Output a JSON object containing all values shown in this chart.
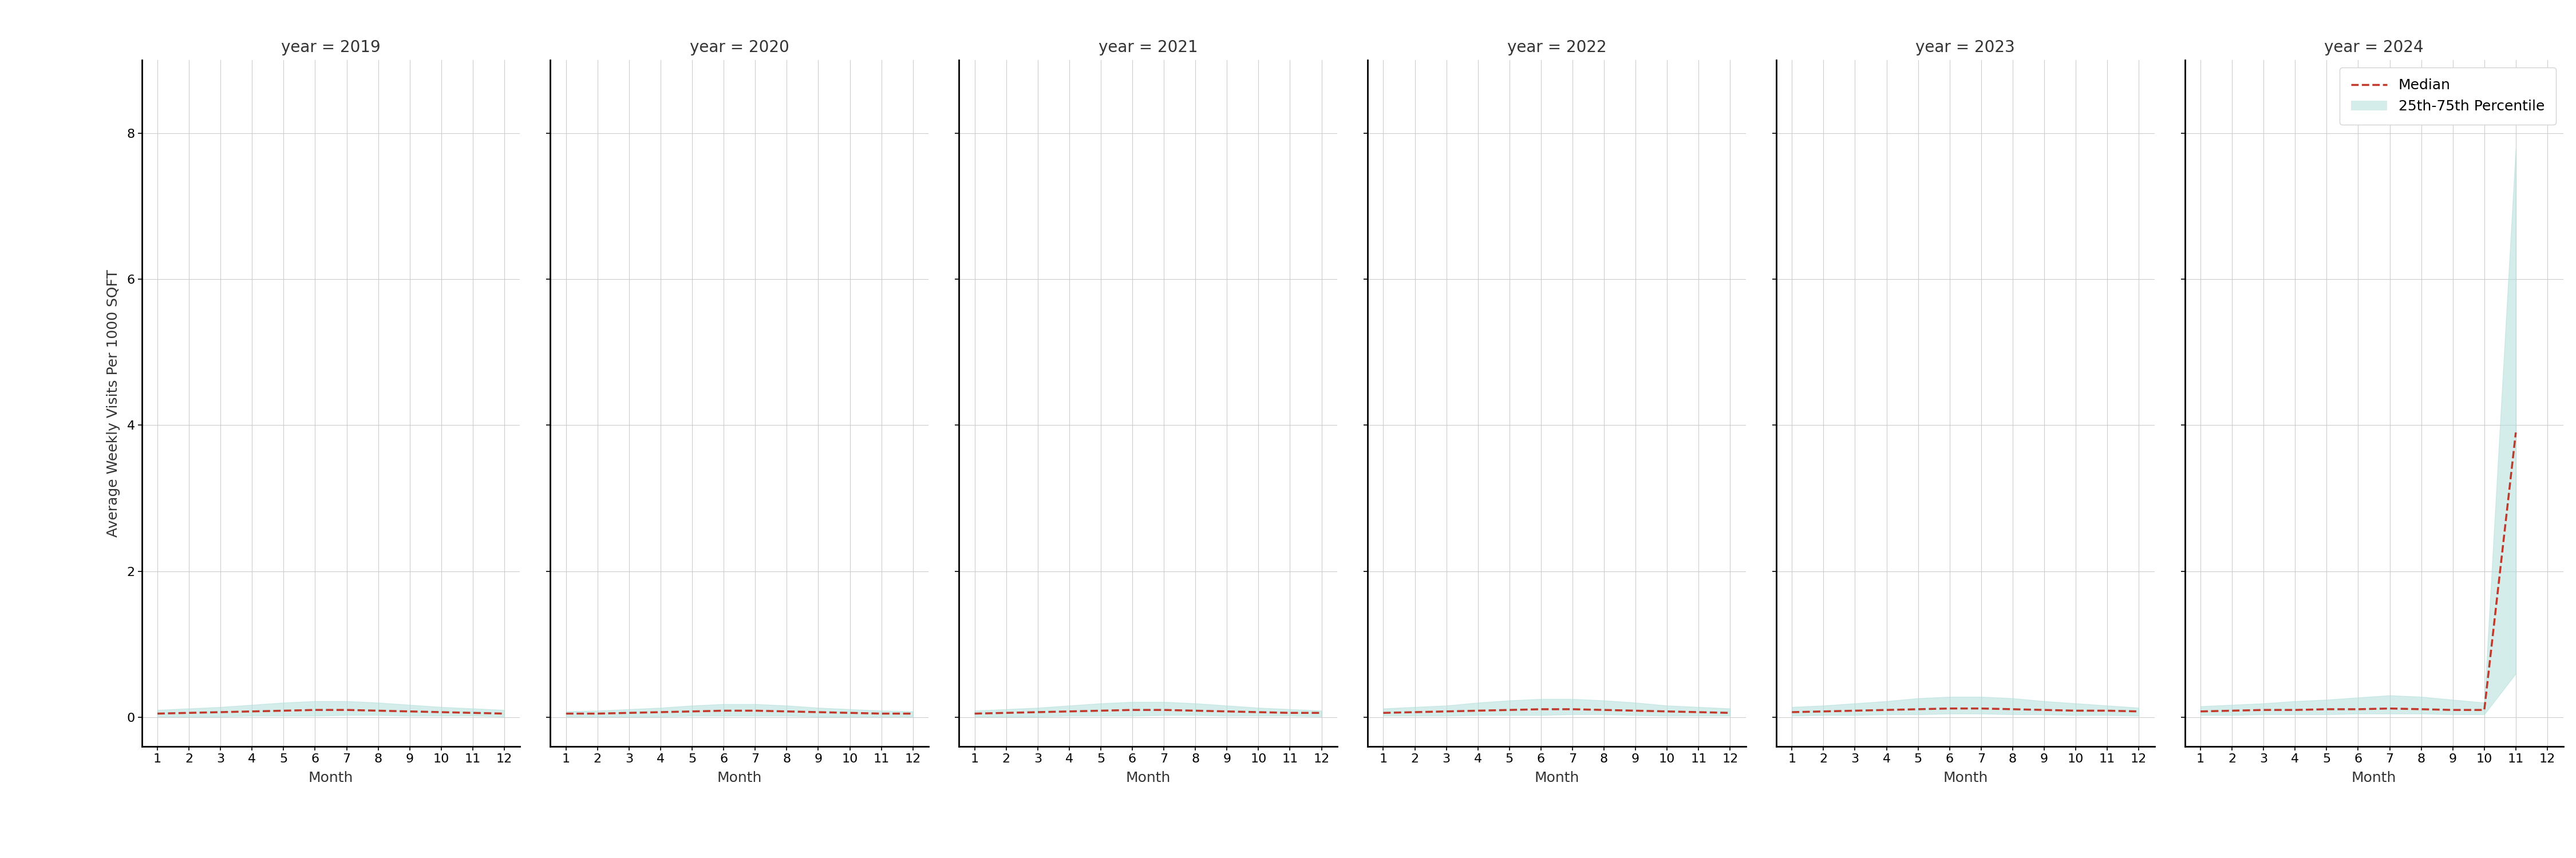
{
  "years": [
    2019,
    2020,
    2021,
    2022,
    2023,
    2024
  ],
  "months": [
    1,
    2,
    3,
    4,
    5,
    6,
    7,
    8,
    9,
    10,
    11,
    12
  ],
  "ylabel": "Average Weekly Visits Per 1000 SQFT",
  "xlabel": "Month",
  "ylim": [
    -0.4,
    9.0
  ],
  "yticks": [
    0,
    2,
    4,
    6,
    8
  ],
  "xticks": [
    1,
    2,
    3,
    4,
    5,
    6,
    7,
    8,
    9,
    10,
    11,
    12
  ],
  "median_color": "#c0392b",
  "fill_color": "#b2dfdb",
  "fill_alpha": 0.55,
  "median_data": {
    "2019": [
      0.05,
      0.06,
      0.07,
      0.08,
      0.09,
      0.1,
      0.1,
      0.09,
      0.08,
      0.07,
      0.06,
      0.05
    ],
    "2020": [
      0.05,
      0.05,
      0.06,
      0.07,
      0.08,
      0.09,
      0.09,
      0.08,
      0.07,
      0.06,
      0.05,
      0.05
    ],
    "2021": [
      0.05,
      0.06,
      0.07,
      0.08,
      0.09,
      0.1,
      0.1,
      0.09,
      0.08,
      0.07,
      0.06,
      0.06
    ],
    "2022": [
      0.06,
      0.07,
      0.08,
      0.09,
      0.1,
      0.11,
      0.11,
      0.1,
      0.09,
      0.08,
      0.07,
      0.06
    ],
    "2023": [
      0.07,
      0.08,
      0.09,
      0.1,
      0.11,
      0.12,
      0.12,
      0.11,
      0.1,
      0.09,
      0.09,
      0.08
    ],
    "2024": [
      0.08,
      0.09,
      0.1,
      0.1,
      0.11,
      0.11,
      0.12,
      0.11,
      0.1,
      0.1,
      3.9,
      null
    ]
  },
  "p25_data": {
    "2019": [
      0.01,
      0.01,
      0.01,
      0.02,
      0.02,
      0.02,
      0.03,
      0.03,
      0.02,
      0.02,
      0.02,
      0.01
    ],
    "2020": [
      0.01,
      0.01,
      0.01,
      0.01,
      0.02,
      0.02,
      0.02,
      0.02,
      0.01,
      0.01,
      0.01,
      0.01
    ],
    "2021": [
      0.01,
      0.01,
      0.01,
      0.02,
      0.02,
      0.02,
      0.03,
      0.03,
      0.02,
      0.02,
      0.02,
      0.01
    ],
    "2022": [
      0.02,
      0.02,
      0.02,
      0.03,
      0.03,
      0.03,
      0.04,
      0.04,
      0.03,
      0.02,
      0.02,
      0.02
    ],
    "2023": [
      0.02,
      0.03,
      0.03,
      0.04,
      0.04,
      0.05,
      0.05,
      0.04,
      0.04,
      0.03,
      0.03,
      0.02
    ],
    "2024": [
      0.03,
      0.03,
      0.04,
      0.04,
      0.04,
      0.05,
      0.05,
      0.05,
      0.04,
      0.04,
      0.6,
      null
    ]
  },
  "p75_data": {
    "2019": [
      0.1,
      0.12,
      0.14,
      0.17,
      0.2,
      0.22,
      0.22,
      0.2,
      0.17,
      0.14,
      0.12,
      0.1
    ],
    "2020": [
      0.08,
      0.09,
      0.11,
      0.13,
      0.16,
      0.18,
      0.18,
      0.16,
      0.13,
      0.11,
      0.09,
      0.08
    ],
    "2021": [
      0.09,
      0.11,
      0.13,
      0.16,
      0.19,
      0.21,
      0.21,
      0.19,
      0.16,
      0.13,
      0.11,
      0.09
    ],
    "2022": [
      0.12,
      0.14,
      0.16,
      0.2,
      0.23,
      0.25,
      0.25,
      0.23,
      0.2,
      0.16,
      0.14,
      0.12
    ],
    "2023": [
      0.14,
      0.16,
      0.19,
      0.22,
      0.26,
      0.28,
      0.28,
      0.26,
      0.22,
      0.19,
      0.16,
      0.13
    ],
    "2024": [
      0.15,
      0.17,
      0.19,
      0.22,
      0.24,
      0.27,
      0.3,
      0.28,
      0.24,
      0.2,
      7.8,
      null
    ]
  },
  "title_fontsize": 20,
  "label_fontsize": 18,
  "tick_fontsize": 16,
  "legend_fontsize": 18,
  "spine_linewidth": 2.0,
  "line_linewidth": 2.5
}
